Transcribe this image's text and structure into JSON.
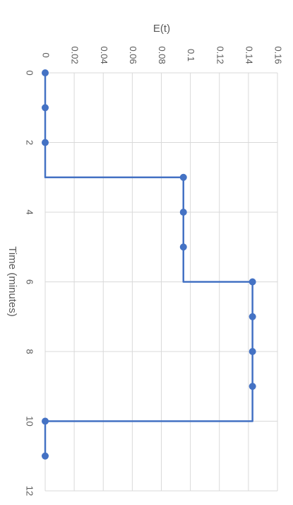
{
  "chart_data": {
    "type": "line",
    "orientation": "rotated-90-clockwise",
    "step": true,
    "xlabel": "Time (minutes)",
    "ylabel": "E(t)",
    "xlim": [
      0,
      12
    ],
    "ylim": [
      0,
      0.16
    ],
    "x_ticks": [
      "0",
      "2",
      "4",
      "6",
      "8",
      "10",
      "12"
    ],
    "y_ticks": [
      "0",
      "0.02",
      "0.04",
      "0.06",
      "0.08",
      "0.1",
      "0.12",
      "0.14",
      "0.16"
    ],
    "grid": true,
    "legend": "none",
    "series": [
      {
        "color": "#4472c4",
        "x": [
          0,
          1,
          2,
          3,
          4,
          5,
          6,
          7,
          8,
          9,
          10,
          11
        ],
        "y": [
          0,
          0,
          0,
          0.0952,
          0.0952,
          0.0952,
          0.1428,
          0.1428,
          0.1428,
          0.1428,
          0,
          0
        ],
        "markers_at": [
          0,
          1,
          2,
          3,
          4,
          5,
          6,
          7,
          8,
          9,
          10,
          11
        ]
      }
    ]
  }
}
